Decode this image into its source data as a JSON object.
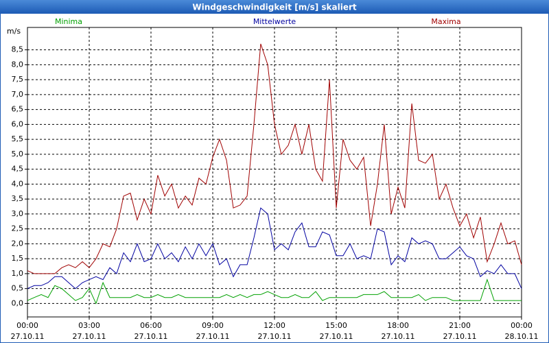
{
  "chart_data": {
    "type": "line",
    "title": "Windgeschwindigkeit [m/s] skaliert",
    "y_label": "m/s",
    "legend": "top",
    "grid": true,
    "x": [
      0,
      0.33,
      0.67,
      1,
      1.33,
      1.67,
      2,
      2.33,
      2.67,
      3,
      3.33,
      3.67,
      4,
      4.33,
      4.67,
      5,
      5.33,
      5.67,
      6,
      6.33,
      6.67,
      7,
      7.33,
      7.67,
      8,
      8.33,
      8.67,
      9,
      9.33,
      9.67,
      10,
      10.33,
      10.67,
      11,
      11.33,
      11.67,
      12,
      12.33,
      12.67,
      13,
      13.33,
      13.67,
      14,
      14.33,
      14.67,
      15,
      15.33,
      15.67,
      16,
      16.33,
      16.67,
      17,
      17.33,
      17.67,
      18,
      18.33,
      18.67,
      19,
      19.33,
      19.67,
      20,
      20.33,
      20.67,
      21,
      21.33,
      21.67,
      22,
      22.33,
      22.67,
      23,
      23.33,
      23.67,
      24
    ],
    "series": [
      {
        "name": "Minima",
        "color": "#00a000",
        "values": [
          0.1,
          0.2,
          0.3,
          0.2,
          0.6,
          0.5,
          0.3,
          0.1,
          0.2,
          0.5,
          0.0,
          0.7,
          0.2,
          0.2,
          0.2,
          0.2,
          0.3,
          0.2,
          0.2,
          0.3,
          0.2,
          0.2,
          0.3,
          0.2,
          0.2,
          0.2,
          0.2,
          0.2,
          0.2,
          0.3,
          0.2,
          0.3,
          0.2,
          0.3,
          0.3,
          0.4,
          0.3,
          0.2,
          0.2,
          0.3,
          0.2,
          0.2,
          0.4,
          0.1,
          0.2,
          0.2,
          0.2,
          0.2,
          0.2,
          0.3,
          0.3,
          0.3,
          0.4,
          0.2,
          0.2,
          0.2,
          0.2,
          0.3,
          0.1,
          0.2,
          0.2,
          0.2,
          0.1,
          0.1,
          0.1,
          0.1,
          0.1,
          0.8,
          0.1,
          0.1,
          0.1,
          0.1,
          0.1
        ]
      },
      {
        "name": "Mittelwerte",
        "color": "#0000a0",
        "values": [
          0.5,
          0.6,
          0.6,
          0.7,
          0.9,
          0.9,
          0.7,
          0.5,
          0.7,
          0.8,
          0.9,
          0.8,
          1.2,
          1.0,
          1.7,
          1.4,
          2.0,
          1.4,
          1.5,
          2.0,
          1.5,
          1.7,
          1.4,
          1.9,
          1.5,
          2.0,
          1.6,
          2.0,
          1.3,
          1.5,
          0.9,
          1.3,
          1.3,
          2.2,
          3.2,
          3.0,
          1.8,
          2.0,
          1.8,
          2.4,
          2.7,
          1.9,
          1.9,
          2.4,
          2.3,
          1.6,
          1.6,
          2.0,
          1.5,
          1.6,
          1.5,
          2.5,
          2.4,
          1.3,
          1.6,
          1.4,
          2.2,
          2.0,
          2.1,
          2.0,
          1.5,
          1.5,
          1.7,
          1.9,
          1.6,
          1.5,
          0.9,
          1.1,
          1.0,
          1.3,
          1.0,
          1.0,
          0.5
        ]
      },
      {
        "name": "Maxima",
        "color": "#a00000",
        "values": [
          1.1,
          1.0,
          1.0,
          1.0,
          1.0,
          1.2,
          1.3,
          1.2,
          1.4,
          1.2,
          1.5,
          2.0,
          1.9,
          2.5,
          3.6,
          3.7,
          2.8,
          3.5,
          3.0,
          4.3,
          3.6,
          4.0,
          3.2,
          3.6,
          3.3,
          4.2,
          4.0,
          4.9,
          5.5,
          4.8,
          3.2,
          3.3,
          3.6,
          6.0,
          8.7,
          8.0,
          6.0,
          5.0,
          5.3,
          6.0,
          5.0,
          6.0,
          4.5,
          4.1,
          7.5,
          3.2,
          5.5,
          4.8,
          4.5,
          4.9,
          2.6,
          4.0,
          6.0,
          3.0,
          3.9,
          3.2,
          6.7,
          4.8,
          4.7,
          5.0,
          3.5,
          4.0,
          3.2,
          2.6,
          3.0,
          2.2,
          2.9,
          1.4,
          2.0,
          2.7,
          2.0,
          2.1,
          1.3
        ]
      }
    ],
    "xlim": [
      0,
      24
    ],
    "xticks": [
      {
        "value": 0,
        "label": "00:00\n27.10.11"
      },
      {
        "value": 3,
        "label": "03:00\n27.10.11"
      },
      {
        "value": 6,
        "label": "06:00\n27.10.11"
      },
      {
        "value": 9,
        "label": "09:00\n27.10.11"
      },
      {
        "value": 12,
        "label": "12:00\n27.10.11"
      },
      {
        "value": 15,
        "label": "15:00\n27.10.11"
      },
      {
        "value": 18,
        "label": "18:00\n27.10.11"
      },
      {
        "value": 21,
        "label": "21:00\n27.10.11"
      },
      {
        "value": 24,
        "label": "00:00\n28.10.11"
      }
    ],
    "ylim": [
      -0.45,
      9.25
    ],
    "yticks": [
      {
        "value": 0,
        "label": "0,0"
      },
      {
        "value": 0.5,
        "label": "0,5"
      },
      {
        "value": 1,
        "label": "1,0"
      },
      {
        "value": 1.5,
        "label": "1,5"
      },
      {
        "value": 2,
        "label": "2,0"
      },
      {
        "value": 2.5,
        "label": "2,5"
      },
      {
        "value": 3,
        "label": "3,0"
      },
      {
        "value": 3.5,
        "label": "3,5"
      },
      {
        "value": 4,
        "label": "4,0"
      },
      {
        "value": 4.5,
        "label": "4,5"
      },
      {
        "value": 5,
        "label": "5,0"
      },
      {
        "value": 5.5,
        "label": "5,5"
      },
      {
        "value": 6,
        "label": "6,0"
      },
      {
        "value": 6.5,
        "label": "6,5"
      },
      {
        "value": 7,
        "label": "7,0"
      },
      {
        "value": 7.5,
        "label": "7,5"
      },
      {
        "value": 8,
        "label": "8,0"
      },
      {
        "value": 8.5,
        "label": "8,5"
      }
    ]
  }
}
